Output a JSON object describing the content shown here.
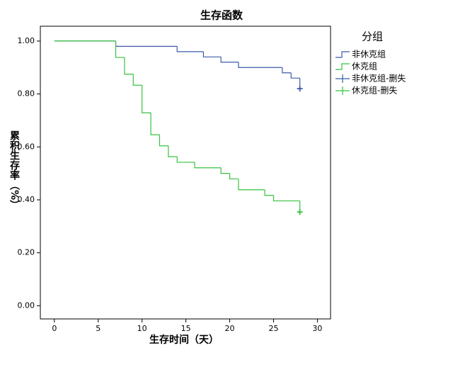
{
  "chart_data": {
    "type": "step",
    "title": "生存函数",
    "x_label": "生存时间（天）",
    "y_label": "累积生存率（%）",
    "legend_title": "分组",
    "legend": "right",
    "xlim": [
      -1.6,
      31.5
    ],
    "xticks": [
      0,
      5,
      10,
      15,
      20,
      25,
      30
    ],
    "ylim": [
      -0.05,
      1.056
    ],
    "yticks": [
      {
        "value": 0,
        "label": "0.00"
      },
      {
        "value": 0.2,
        "label": "0.20"
      },
      {
        "value": 0.4,
        "label": "0.40"
      },
      {
        "value": 0.6,
        "label": "0.60"
      },
      {
        "value": 0.8,
        "label": "0.80"
      },
      {
        "value": 1,
        "label": "1.00"
      }
    ],
    "series": [
      {
        "name": "非休克组",
        "style": "step",
        "color": "#3b5ba9",
        "x": [
          0,
          7,
          14,
          17,
          19,
          21,
          26,
          27,
          28
        ],
        "values": [
          1,
          0.98,
          0.96,
          0.94,
          0.92,
          0.9,
          0.88,
          0.86,
          0.82
        ]
      },
      {
        "name": "休克组",
        "style": "step",
        "color": "#35c23f",
        "x": [
          0,
          7,
          8,
          9,
          10,
          11,
          12,
          13,
          14,
          16,
          19,
          20,
          21,
          24,
          25,
          28
        ],
        "values": [
          1,
          0.938,
          0.875,
          0.833,
          0.729,
          0.646,
          0.604,
          0.563,
          0.542,
          0.521,
          0.5,
          0.479,
          0.438,
          0.417,
          0.396,
          0.354
        ]
      },
      {
        "name": "非休克组-删失",
        "style": "censor",
        "color": "#3b5ba9",
        "x": [
          28
        ],
        "values": [
          0.82
        ]
      },
      {
        "name": "休克组-删失",
        "style": "censor",
        "color": "#35c23f",
        "x": [
          28
        ],
        "values": [
          0.354
        ]
      }
    ]
  }
}
